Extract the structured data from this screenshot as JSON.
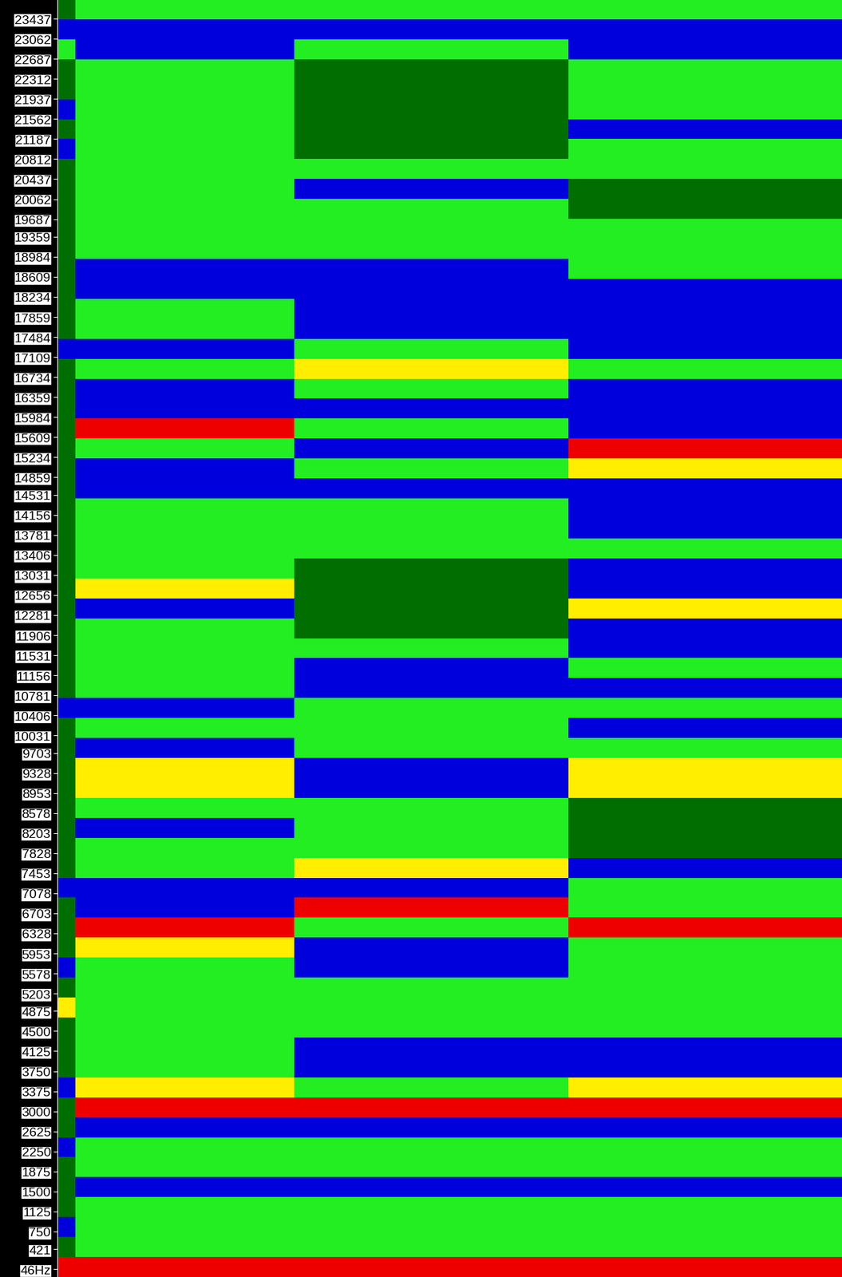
{
  "chart_data": {
    "type": "heatmap",
    "tick_labels": "y",
    "colors": [
      "#006e00",
      "#22ee22",
      "#0000dd",
      "#ffee00",
      "#ee0000"
    ],
    "xlim": [
      0,
      43
    ],
    "x_edges": [
      0,
      1,
      13,
      28,
      43
    ],
    "ylim": [
      -100,
      23800
    ],
    "yticks": [
      23437,
      23062,
      22687,
      22312,
      21937,
      21562,
      21187,
      20812,
      20437,
      20062,
      19687,
      19359,
      18984,
      18609,
      18234,
      17859,
      17484,
      17109,
      16734,
      16359,
      15984,
      15609,
      15234,
      14859,
      14531,
      14156,
      13781,
      13406,
      13031,
      12656,
      12281,
      11906,
      11531,
      11156,
      10781,
      10406,
      10031,
      9703,
      9328,
      8953,
      8578,
      8203,
      7828,
      7453,
      7078,
      6703,
      6328,
      5953,
      5578,
      5203,
      4875,
      4500,
      4125,
      3750,
      3375,
      3000,
      2625,
      2250,
      1875,
      1500,
      1125,
      750,
      421,
      {
        "value": 46,
        "label": "46Hz"
      }
    ],
    "cells": [
      [
        0,
        1,
        1,
        1
      ],
      [
        2,
        2,
        2,
        2
      ],
      [
        1,
        2,
        1,
        2
      ],
      [
        0,
        1,
        0,
        1
      ],
      [
        0,
        1,
        0,
        1
      ],
      [
        2,
        1,
        0,
        1
      ],
      [
        0,
        1,
        0,
        2
      ],
      [
        2,
        1,
        0,
        1
      ],
      [
        0,
        1,
        1,
        1
      ],
      [
        0,
        1,
        2,
        0
      ],
      [
        0,
        1,
        1,
        0
      ],
      [
        0,
        1,
        1,
        1
      ],
      [
        0,
        1,
        1,
        1
      ],
      [
        0,
        2,
        2,
        1
      ],
      [
        0,
        2,
        2,
        2
      ],
      [
        0,
        1,
        2,
        2
      ],
      [
        0,
        1,
        2,
        2
      ],
      [
        2,
        2,
        1,
        2
      ],
      [
        0,
        1,
        3,
        1
      ],
      [
        0,
        2,
        1,
        2
      ],
      [
        0,
        2,
        2,
        2
      ],
      [
        0,
        4,
        1,
        2
      ],
      [
        0,
        1,
        2,
        4
      ],
      [
        0,
        2,
        1,
        3
      ],
      [
        0,
        2,
        2,
        2
      ],
      [
        0,
        1,
        1,
        2
      ],
      [
        0,
        1,
        1,
        2
      ],
      [
        0,
        1,
        1,
        1
      ],
      [
        0,
        1,
        0,
        2
      ],
      [
        0,
        3,
        0,
        2
      ],
      [
        0,
        2,
        0,
        3
      ],
      [
        0,
        1,
        0,
        2
      ],
      [
        0,
        1,
        1,
        2
      ],
      [
        0,
        1,
        2,
        1
      ],
      [
        0,
        1,
        2,
        2
      ],
      [
        2,
        2,
        1,
        1
      ],
      [
        0,
        1,
        1,
        2
      ],
      [
        0,
        2,
        1,
        1
      ],
      [
        0,
        3,
        2,
        3
      ],
      [
        0,
        3,
        2,
        3
      ],
      [
        0,
        1,
        1,
        0
      ],
      [
        0,
        2,
        1,
        0
      ],
      [
        0,
        1,
        1,
        0
      ],
      [
        0,
        1,
        3,
        2
      ],
      [
        2,
        2,
        2,
        1
      ],
      [
        0,
        2,
        4,
        1
      ],
      [
        0,
        4,
        1,
        4
      ],
      [
        0,
        3,
        2,
        1
      ],
      [
        2,
        1,
        2,
        1
      ],
      [
        0,
        1,
        1,
        1
      ],
      [
        3,
        1,
        1,
        1
      ],
      [
        0,
        1,
        1,
        1
      ],
      [
        0,
        1,
        2,
        2
      ],
      [
        0,
        1,
        2,
        2
      ],
      [
        2,
        3,
        1,
        3
      ],
      [
        0,
        4,
        4,
        4
      ],
      [
        0,
        2,
        2,
        2
      ],
      [
        2,
        1,
        1,
        1
      ],
      [
        0,
        1,
        1,
        1
      ],
      [
        0,
        2,
        2,
        2
      ],
      [
        0,
        1,
        1,
        1
      ],
      [
        2,
        1,
        1,
        1
      ],
      [
        0,
        1,
        1,
        1
      ],
      [
        4,
        4,
        4,
        4
      ]
    ]
  }
}
